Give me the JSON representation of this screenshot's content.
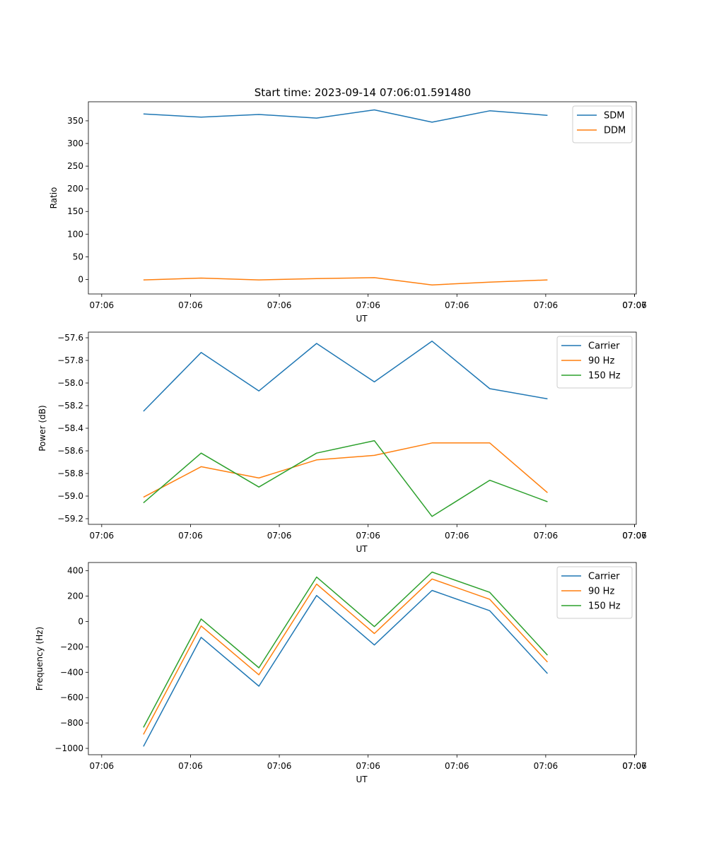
{
  "figure_title": "Start time: 2023-09-14 07:06:01.591480",
  "chart_data": [
    {
      "type": "line",
      "xlabel": "UT",
      "ylabel": "Ratio",
      "x_tick_labels": [
        "07:06",
        "07:06",
        "07:06",
        "07:06",
        "07:06",
        "07:06",
        "07:06"
      ],
      "x_last_tick_label": "07:07",
      "x_tick_values": [
        0,
        1,
        2,
        3,
        4,
        5,
        6
      ],
      "x_last_tick_value": 6,
      "xlim": [
        -0.15,
        6.02
      ],
      "x": [
        0.47,
        1.12,
        1.77,
        2.42,
        3.07,
        3.72,
        4.37,
        5.02
      ],
      "ylim": [
        -32,
        392
      ],
      "y_ticks": [
        0,
        50,
        100,
        150,
        200,
        250,
        300,
        350
      ],
      "series": [
        {
          "name": "SDM",
          "color": "#1f77b4",
          "values": [
            365,
            358,
            364,
            356,
            374,
            347,
            372,
            362
          ]
        },
        {
          "name": "DDM",
          "color": "#ff7f0e",
          "values": [
            -1,
            3,
            -1,
            2,
            4,
            -12,
            -6,
            -1
          ]
        }
      ],
      "legend": "top-right"
    },
    {
      "type": "line",
      "xlabel": "UT",
      "ylabel": "Power (dB)",
      "x_tick_labels": [
        "07:06",
        "07:06",
        "07:06",
        "07:06",
        "07:06",
        "07:06",
        "07:06"
      ],
      "x_last_tick_label": "07:07",
      "x_tick_values": [
        0,
        1,
        2,
        3,
        4,
        5,
        6
      ],
      "x_last_tick_value": 6,
      "xlim": [
        -0.15,
        6.02
      ],
      "x": [
        0.47,
        1.12,
        1.77,
        2.42,
        3.07,
        3.72,
        4.37,
        5.02
      ],
      "ylim": [
        -59.25,
        -57.55
      ],
      "y_ticks": [
        -59.2,
        -59.0,
        -58.8,
        -58.6,
        -58.4,
        -58.2,
        -58.0,
        -57.8,
        -57.6
      ],
      "series": [
        {
          "name": "Carrier",
          "color": "#1f77b4",
          "values": [
            -58.25,
            -57.73,
            -58.07,
            -57.65,
            -57.99,
            -57.63,
            -58.05,
            -58.14
          ]
        },
        {
          "name": "90 Hz",
          "color": "#ff7f0e",
          "values": [
            -59.01,
            -58.74,
            -58.84,
            -58.68,
            -58.64,
            -58.53,
            -58.53,
            -58.97
          ]
        },
        {
          "name": "150 Hz",
          "color": "#2ca02c",
          "values": [
            -59.06,
            -58.62,
            -58.92,
            -58.62,
            -58.51,
            -59.18,
            -58.86,
            -59.05
          ]
        }
      ],
      "legend": "top-right"
    },
    {
      "type": "line",
      "xlabel": "UT",
      "ylabel": "Frequency (Hz)",
      "x_tick_labels": [
        "07:06",
        "07:06",
        "07:06",
        "07:06",
        "07:06",
        "07:06",
        "07:06"
      ],
      "x_last_tick_label": "07:07",
      "x_tick_values": [
        0,
        1,
        2,
        3,
        4,
        5,
        6
      ],
      "x_last_tick_value": 6,
      "xlim": [
        -0.15,
        6.02
      ],
      "x": [
        0.47,
        1.12,
        1.77,
        2.42,
        3.07,
        3.72,
        4.37,
        5.02
      ],
      "ylim": [
        -1050,
        465
      ],
      "y_ticks": [
        -1000,
        -800,
        -600,
        -400,
        -200,
        0,
        200,
        400
      ],
      "series": [
        {
          "name": "Carrier",
          "color": "#1f77b4",
          "values": [
            -985,
            -125,
            -510,
            205,
            -185,
            245,
            85,
            -410
          ]
        },
        {
          "name": "90 Hz",
          "color": "#ff7f0e",
          "values": [
            -890,
            -35,
            -420,
            295,
            -95,
            335,
            175,
            -320
          ]
        },
        {
          "name": "150 Hz",
          "color": "#2ca02c",
          "values": [
            -835,
            20,
            -365,
            350,
            -40,
            390,
            230,
            -265
          ]
        }
      ],
      "legend": "top-right"
    }
  ]
}
